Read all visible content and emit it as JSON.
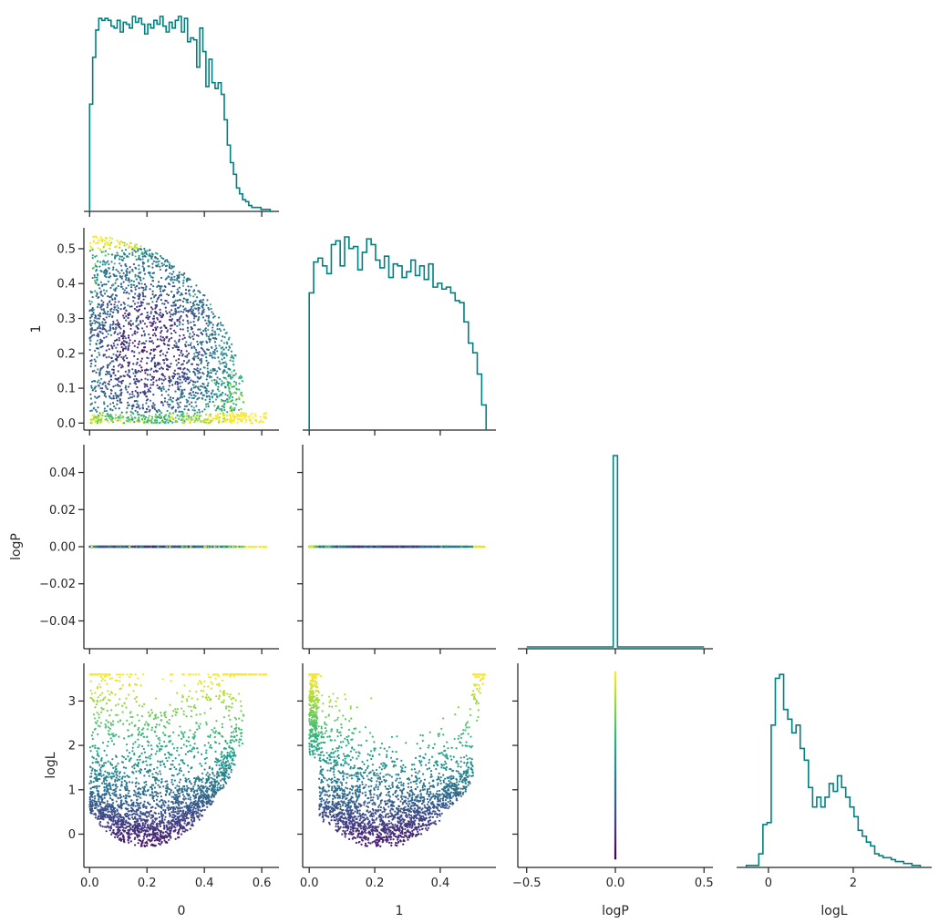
{
  "figure": {
    "type": "corner_plot",
    "parameters": [
      "0",
      "1",
      "logP",
      "logL"
    ],
    "colormap": "viridis",
    "hist_color": "#008080"
  },
  "chart_data": [
    {
      "id": "hist-0",
      "type": "bar",
      "style": "step_histogram",
      "xlim": [
        -0.02,
        0.66
      ],
      "bin_edges_range": [
        0.0,
        0.64
      ],
      "values": [
        0.55,
        0.79,
        0.93,
        0.99,
        0.98,
        0.99,
        0.98,
        0.95,
        0.94,
        0.98,
        0.92,
        0.97,
        0.96,
        0.94,
        1.0,
        0.97,
        0.99,
        0.96,
        0.91,
        0.96,
        0.94,
        0.98,
        0.96,
        1.0,
        0.95,
        0.92,
        0.97,
        0.94,
        0.98,
        1.0,
        0.92,
        0.99,
        0.87,
        0.89,
        0.88,
        0.74,
        0.94,
        0.82,
        0.64,
        0.78,
        0.66,
        0.63,
        0.66,
        0.6,
        0.47,
        0.34,
        0.25,
        0.19,
        0.12,
        0.09,
        0.06,
        0.05,
        0.03,
        0.02,
        0.02,
        0.02,
        0.01,
        0.01,
        0.01,
        0.0
      ]
    },
    {
      "id": "hist-1",
      "type": "bar",
      "style": "step_histogram",
      "xlim": [
        -0.02,
        0.57
      ],
      "bin_edges_range": [
        0.0,
        0.54
      ],
      "values": [
        0.71,
        0.87,
        0.89,
        0.85,
        0.81,
        0.96,
        0.98,
        0.85,
        1.0,
        0.94,
        0.95,
        0.83,
        0.92,
        0.99,
        0.96,
        0.88,
        0.84,
        0.9,
        0.79,
        0.86,
        0.85,
        0.79,
        0.82,
        0.88,
        0.8,
        0.85,
        0.78,
        0.86,
        0.74,
        0.76,
        0.73,
        0.74,
        0.71,
        0.67,
        0.66,
        0.56,
        0.45,
        0.4,
        0.29,
        0.13
      ]
    },
    {
      "id": "hist-logP",
      "type": "bar",
      "style": "step_histogram",
      "xlim": [
        -0.55,
        0.55
      ],
      "note": "single bin spike at 0",
      "spike_at": 0.0
    },
    {
      "id": "hist-logL",
      "type": "bar",
      "style": "step_histogram",
      "xlim": [
        -0.75,
        3.85
      ],
      "bin_edges_range": [
        -0.52,
        3.58
      ],
      "values": [
        0.01,
        0.01,
        0.01,
        0.07,
        0.22,
        0.23,
        0.73,
        0.97,
        0.99,
        0.81,
        0.76,
        0.69,
        0.73,
        0.61,
        0.55,
        0.41,
        0.31,
        0.36,
        0.31,
        0.36,
        0.43,
        0.39,
        0.47,
        0.41,
        0.36,
        0.31,
        0.26,
        0.19,
        0.16,
        0.13,
        0.11,
        0.07,
        0.06,
        0.05,
        0.05,
        0.04,
        0.03,
        0.03,
        0.02,
        0.02,
        0.01,
        0.01
      ]
    },
    {
      "id": "scatter-0-1",
      "type": "scatter",
      "x_param": "0",
      "y_param": "1",
      "xlim": [
        -0.02,
        0.66
      ],
      "ylim": [
        -0.02,
        0.56
      ],
      "ylabel": "1",
      "yticks": [
        "0.0",
        "0.1",
        "0.2",
        "0.3",
        "0.4",
        "0.5"
      ],
      "ytick_values": [
        0.0,
        0.1,
        0.2,
        0.3,
        0.4,
        0.5
      ],
      "support": "x in [0, 0.62], y in [0, 0.54], roughly x^2 + y^2 <= 0.55^2 with tail toward x=0.62 near y=0"
    },
    {
      "id": "scatter-0-logP",
      "type": "scatter",
      "x_param": "0",
      "y_param": "logP",
      "xlim": [
        -0.02,
        0.66
      ],
      "ylim": [
        -0.055,
        0.055
      ],
      "ylabel": "logP",
      "yticks": [
        "0.04",
        "0.02",
        "0.00",
        "−0.02",
        "−0.04"
      ],
      "ytick_values": [
        0.04,
        0.02,
        0.0,
        -0.02,
        -0.04
      ],
      "constant_y": 0.0
    },
    {
      "id": "scatter-1-logP",
      "type": "scatter",
      "x_param": "1",
      "y_param": "logP",
      "xlim": [
        -0.02,
        0.57
      ],
      "ylim": [
        -0.055,
        0.055
      ],
      "constant_y": 0.0
    },
    {
      "id": "scatter-0-logL",
      "type": "scatter",
      "x_param": "0",
      "y_param": "logL",
      "xlim": [
        -0.02,
        0.66
      ],
      "ylim": [
        -0.75,
        3.85
      ],
      "ylabel": "logL",
      "xlabel": "0",
      "yticks": [
        "0",
        "1",
        "2",
        "3"
      ],
      "ytick_values": [
        0,
        1,
        2,
        3
      ],
      "xticks": [
        "0.0",
        "0.2",
        "0.4",
        "0.6"
      ],
      "xtick_values": [
        0.0,
        0.2,
        0.4,
        0.6
      ]
    },
    {
      "id": "scatter-1-logL",
      "type": "scatter",
      "x_param": "1",
      "y_param": "logL",
      "xlim": [
        -0.02,
        0.57
      ],
      "ylim": [
        -0.75,
        3.85
      ],
      "xlabel": "1",
      "xticks": [
        "0.0",
        "0.2",
        "0.4"
      ],
      "xtick_values": [
        0.0,
        0.2,
        0.4
      ]
    },
    {
      "id": "scatter-logP-logL",
      "type": "scatter",
      "x_param": "logP",
      "y_param": "logL",
      "xlim": [
        -0.55,
        0.55
      ],
      "ylim": [
        -0.75,
        3.85
      ],
      "xlabel": "logP",
      "xticks": [
        "−0.5",
        "0.0",
        "0.5"
      ],
      "xtick_values": [
        -0.5,
        0.0,
        0.5
      ],
      "constant_x": 0.0,
      "y_range": [
        -0.55,
        3.65
      ]
    },
    {
      "id": "hist-logL-axis",
      "type": "bar",
      "xlabel": "logL",
      "xticks": [
        "0",
        "2"
      ],
      "xtick_values": [
        0,
        2
      ]
    }
  ]
}
